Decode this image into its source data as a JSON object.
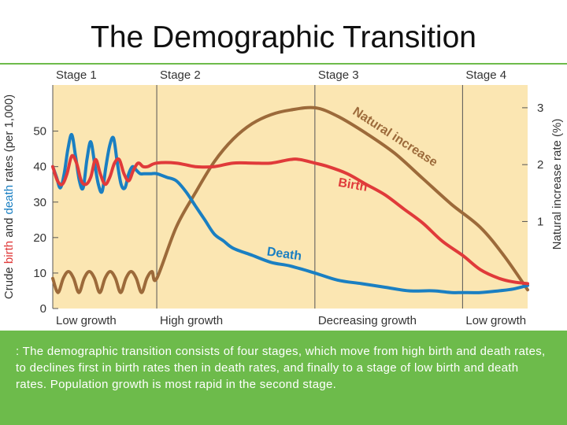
{
  "title": "The Demographic Transition",
  "caption": ": The demographic transition consists of four stages, which move from high birth and death rates, to declines first in birth rates then in death rates, and finally to a stage of low birth and death rates. Population growth is most rapid in the second stage.",
  "colors": {
    "birth": "#e03a3a",
    "death": "#1a7fc2",
    "natural": "#9c6a3a",
    "background": "#fbe6b2",
    "band": "#6dbb4b"
  },
  "chart_data": {
    "type": "line",
    "title": "",
    "left_axis": {
      "label_parts": [
        "Crude ",
        "birth",
        " and ",
        "death",
        " rates (per 1,000)"
      ],
      "ticks": [
        0,
        10,
        20,
        30,
        40,
        50
      ],
      "range": [
        0,
        63
      ]
    },
    "right_axis": {
      "label": "Natural increase rate (%)",
      "ticks": [
        1,
        2,
        3
      ],
      "range": [
        -0.53,
        3.4
      ]
    },
    "x_range": [
      0,
      100
    ],
    "stages": [
      {
        "label": "Stage 1",
        "growth": "Low growth",
        "start": 0
      },
      {
        "label": "Stage 2",
        "growth": "High growth",
        "start": 21.9
      },
      {
        "label": "Stage 3",
        "growth": "Decreasing growth",
        "start": 55.2
      },
      {
        "label": "Stage 4",
        "growth": "Low growth",
        "start": 86.3
      }
    ],
    "series": [
      {
        "name": "Birth",
        "axis": "left",
        "x": [
          0,
          1,
          2,
          3,
          4,
          5,
          6,
          7,
          8,
          9,
          10,
          11,
          12,
          13,
          14,
          15,
          16,
          17,
          18,
          19,
          20,
          21.9,
          26,
          30,
          34,
          38,
          42,
          46,
          50,
          52,
          55.2,
          58,
          62,
          66,
          70,
          74,
          78,
          82,
          86.3,
          90,
          94,
          97,
          100
        ],
        "y": [
          40,
          36,
          35,
          38,
          43,
          41,
          36,
          35,
          37,
          42,
          38,
          35,
          37,
          41,
          42,
          38,
          36,
          39,
          41,
          40,
          40,
          41,
          41,
          40,
          40,
          41,
          41,
          41,
          42,
          42,
          41,
          40,
          38,
          35,
          32,
          28,
          24,
          19,
          15,
          11,
          8.5,
          7.5,
          7
        ]
      },
      {
        "name": "Death",
        "axis": "left",
        "x": [
          0,
          0.8,
          1.6,
          2.4,
          3.2,
          4,
          4.8,
          5.6,
          6.4,
          7.2,
          8,
          8.8,
          9.6,
          10.4,
          11.2,
          12,
          12.8,
          13.6,
          14.4,
          15.2,
          16,
          16.8,
          17.6,
          18.4,
          19.2,
          20,
          20.8,
          21.9,
          24,
          26,
          28,
          30,
          32,
          34,
          36,
          38,
          42,
          46,
          50,
          55.2,
          60,
          65,
          70,
          75,
          80,
          84,
          86.3,
          90,
          94,
          97,
          100
        ],
        "y": [
          40,
          37,
          34,
          38,
          45,
          49,
          43,
          36,
          34,
          42,
          47,
          41,
          35,
          33,
          40,
          46,
          48,
          41,
          35,
          34,
          38,
          40,
          39,
          38,
          38,
          38,
          38,
          38,
          37,
          36,
          33,
          29,
          25,
          21,
          19,
          17,
          15,
          13,
          12,
          10,
          8,
          7,
          6,
          5,
          5,
          4.5,
          4.5,
          4.5,
          5,
          5.5,
          6.5
        ]
      },
      {
        "name": "Natural increase",
        "axis": "right",
        "x": [
          0,
          1.1,
          2.2,
          3.3,
          4.4,
          5.5,
          6.6,
          7.7,
          8.8,
          9.9,
          11,
          12.1,
          13.2,
          14.3,
          15.4,
          16.5,
          17.6,
          18.7,
          19.8,
          20.9,
          21.9,
          26,
          30,
          34,
          38,
          42,
          46,
          50,
          55.2,
          60,
          66,
          72,
          78,
          84,
          90,
          95,
          100
        ],
        "y": [
          0,
          -0.25,
          0,
          0.12,
          0,
          -0.25,
          0,
          0.12,
          0,
          -0.25,
          0,
          0.12,
          0,
          -0.25,
          0,
          0.12,
          0,
          -0.25,
          0,
          0.12,
          0,
          0.9,
          1.5,
          2.05,
          2.45,
          2.72,
          2.88,
          2.96,
          3.0,
          2.85,
          2.55,
          2.2,
          1.75,
          1.3,
          0.9,
          0.4,
          -0.2
        ]
      }
    ],
    "annotations": [
      "Natural increase",
      "Birth",
      "Death"
    ]
  }
}
